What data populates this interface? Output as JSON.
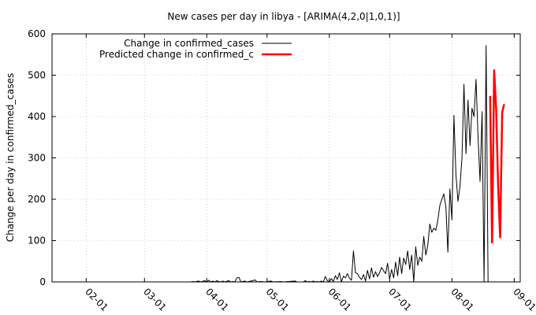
{
  "chart_data": {
    "type": "line",
    "title": "New cases per day in libya -  [ARIMA(4,2,0|1,0,1)]",
    "xlabel": "",
    "ylabel": "Change per day in confirmed_cases",
    "ylim": [
      0,
      600
    ],
    "xlim": [
      "2020-01-15",
      "2020-09-04"
    ],
    "grid": true,
    "legend_position": "top-left",
    "y_ticks": [
      "0",
      "100",
      "200",
      "300",
      "400",
      "500",
      "600"
    ],
    "x_ticks": [
      {
        "date": "2020-02-01",
        "label": "02-01"
      },
      {
        "date": "2020-03-01",
        "label": "03-01"
      },
      {
        "date": "2020-04-01",
        "label": "04-01"
      },
      {
        "date": "2020-05-01",
        "label": "05-01"
      },
      {
        "date": "2020-06-01",
        "label": "06-01"
      },
      {
        "date": "2020-07-01",
        "label": "07-01"
      },
      {
        "date": "2020-08-01",
        "label": "08-01"
      },
      {
        "date": "2020-09-01",
        "label": "09-01"
      }
    ],
    "series": [
      {
        "name": "Change in confirmed_cases",
        "color": "#000000",
        "points": [
          [
            "2020-03-24",
            0
          ],
          [
            "2020-03-25",
            1
          ],
          [
            "2020-03-26",
            0
          ],
          [
            "2020-03-28",
            2
          ],
          [
            "2020-03-29",
            0
          ],
          [
            "2020-03-31",
            3
          ],
          [
            "2020-04-01",
            0
          ],
          [
            "2020-04-02",
            4
          ],
          [
            "2020-04-03",
            0
          ],
          [
            "2020-04-04",
            2
          ],
          [
            "2020-04-05",
            0
          ],
          [
            "2020-04-06",
            3
          ],
          [
            "2020-04-07",
            1
          ],
          [
            "2020-04-08",
            0
          ],
          [
            "2020-04-09",
            2
          ],
          [
            "2020-04-10",
            0
          ],
          [
            "2020-04-12",
            3
          ],
          [
            "2020-04-13",
            0
          ],
          [
            "2020-04-14",
            1
          ],
          [
            "2020-04-15",
            0
          ],
          [
            "2020-04-16",
            10
          ],
          [
            "2020-04-17",
            11
          ],
          [
            "2020-04-18",
            0
          ],
          [
            "2020-04-20",
            2
          ],
          [
            "2020-04-21",
            0
          ],
          [
            "2020-04-24",
            3
          ],
          [
            "2020-04-25",
            5
          ],
          [
            "2020-04-26",
            0
          ],
          [
            "2020-04-28",
            1
          ],
          [
            "2020-04-30",
            0
          ],
          [
            "2020-05-03",
            2
          ],
          [
            "2020-05-04",
            0
          ],
          [
            "2020-05-08",
            1
          ],
          [
            "2020-05-09",
            0
          ],
          [
            "2020-05-15",
            2
          ],
          [
            "2020-05-16",
            0
          ],
          [
            "2020-05-19",
            0
          ],
          [
            "2020-05-20",
            3
          ],
          [
            "2020-05-21",
            0
          ],
          [
            "2020-05-22",
            1
          ],
          [
            "2020-05-23",
            0
          ],
          [
            "2020-05-24",
            2
          ],
          [
            "2020-05-25",
            0
          ],
          [
            "2020-05-26",
            1
          ],
          [
            "2020-05-27",
            0
          ],
          [
            "2020-05-28",
            2
          ],
          [
            "2020-05-29",
            0
          ],
          [
            "2020-05-30",
            13
          ],
          [
            "2020-05-31",
            3
          ],
          [
            "2020-06-01",
            0
          ],
          [
            "2020-06-02",
            8
          ],
          [
            "2020-06-03",
            1
          ],
          [
            "2020-06-04",
            15
          ],
          [
            "2020-06-05",
            6
          ],
          [
            "2020-06-06",
            22
          ],
          [
            "2020-06-07",
            0
          ],
          [
            "2020-06-08",
            14
          ],
          [
            "2020-06-09",
            10
          ],
          [
            "2020-06-10",
            20
          ],
          [
            "2020-06-11",
            9
          ],
          [
            "2020-06-12",
            4
          ],
          [
            "2020-06-13",
            75
          ],
          [
            "2020-06-14",
            22
          ],
          [
            "2020-06-15",
            20
          ],
          [
            "2020-06-16",
            11
          ],
          [
            "2020-06-17",
            6
          ],
          [
            "2020-06-18",
            18
          ],
          [
            "2020-06-19",
            2
          ],
          [
            "2020-06-20",
            28
          ],
          [
            "2020-06-21",
            7
          ],
          [
            "2020-06-22",
            34
          ],
          [
            "2020-06-23",
            11
          ],
          [
            "2020-06-24",
            25
          ],
          [
            "2020-06-25",
            13
          ],
          [
            "2020-06-26",
            22
          ],
          [
            "2020-06-27",
            35
          ],
          [
            "2020-06-28",
            27
          ],
          [
            "2020-06-29",
            20
          ],
          [
            "2020-06-30",
            45
          ],
          [
            "2020-07-01",
            7
          ],
          [
            "2020-07-02",
            30
          ],
          [
            "2020-07-03",
            10
          ],
          [
            "2020-07-04",
            48
          ],
          [
            "2020-07-05",
            15
          ],
          [
            "2020-07-06",
            60
          ],
          [
            "2020-07-07",
            20
          ],
          [
            "2020-07-08",
            58
          ],
          [
            "2020-07-09",
            42
          ],
          [
            "2020-07-10",
            75
          ],
          [
            "2020-07-11",
            30
          ],
          [
            "2020-07-12",
            65
          ],
          [
            "2020-07-13",
            0
          ],
          [
            "2020-07-14",
            85
          ],
          [
            "2020-07-15",
            40
          ],
          [
            "2020-07-16",
            60
          ],
          [
            "2020-07-17",
            50
          ],
          [
            "2020-07-18",
            110
          ],
          [
            "2020-07-19",
            65
          ],
          [
            "2020-07-20",
            88
          ],
          [
            "2020-07-21",
            140
          ],
          [
            "2020-07-22",
            120
          ],
          [
            "2020-07-23",
            130
          ],
          [
            "2020-07-24",
            125
          ],
          [
            "2020-07-25",
            150
          ],
          [
            "2020-07-26",
            185
          ],
          [
            "2020-07-27",
            200
          ],
          [
            "2020-07-28",
            213
          ],
          [
            "2020-07-29",
            180
          ],
          [
            "2020-07-30",
            72
          ],
          [
            "2020-07-31",
            225
          ],
          [
            "2020-08-01",
            150
          ],
          [
            "2020-08-02",
            403
          ],
          [
            "2020-08-03",
            260
          ],
          [
            "2020-08-04",
            195
          ],
          [
            "2020-08-05",
            230
          ],
          [
            "2020-08-06",
            300
          ],
          [
            "2020-08-07",
            478
          ],
          [
            "2020-08-08",
            310
          ],
          [
            "2020-08-09",
            440
          ],
          [
            "2020-08-10",
            330
          ],
          [
            "2020-08-11",
            420
          ],
          [
            "2020-08-12",
            400
          ],
          [
            "2020-08-13",
            490
          ],
          [
            "2020-08-14",
            350
          ],
          [
            "2020-08-15",
            243
          ],
          [
            "2020-08-16",
            412
          ],
          [
            "2020-08-17",
            0
          ],
          [
            "2020-08-18",
            572
          ],
          [
            "2020-08-19",
            0
          ]
        ]
      },
      {
        "name": "Predicted change in confirmed_c",
        "color": "#ff0000",
        "points": [
          [
            "2020-08-20",
            450
          ],
          [
            "2020-08-21",
            95
          ],
          [
            "2020-08-22",
            512
          ],
          [
            "2020-08-23",
            420
          ],
          [
            "2020-08-24",
            230
          ],
          [
            "2020-08-25",
            108
          ],
          [
            "2020-08-26",
            410
          ],
          [
            "2020-08-27",
            430
          ]
        ]
      }
    ]
  }
}
